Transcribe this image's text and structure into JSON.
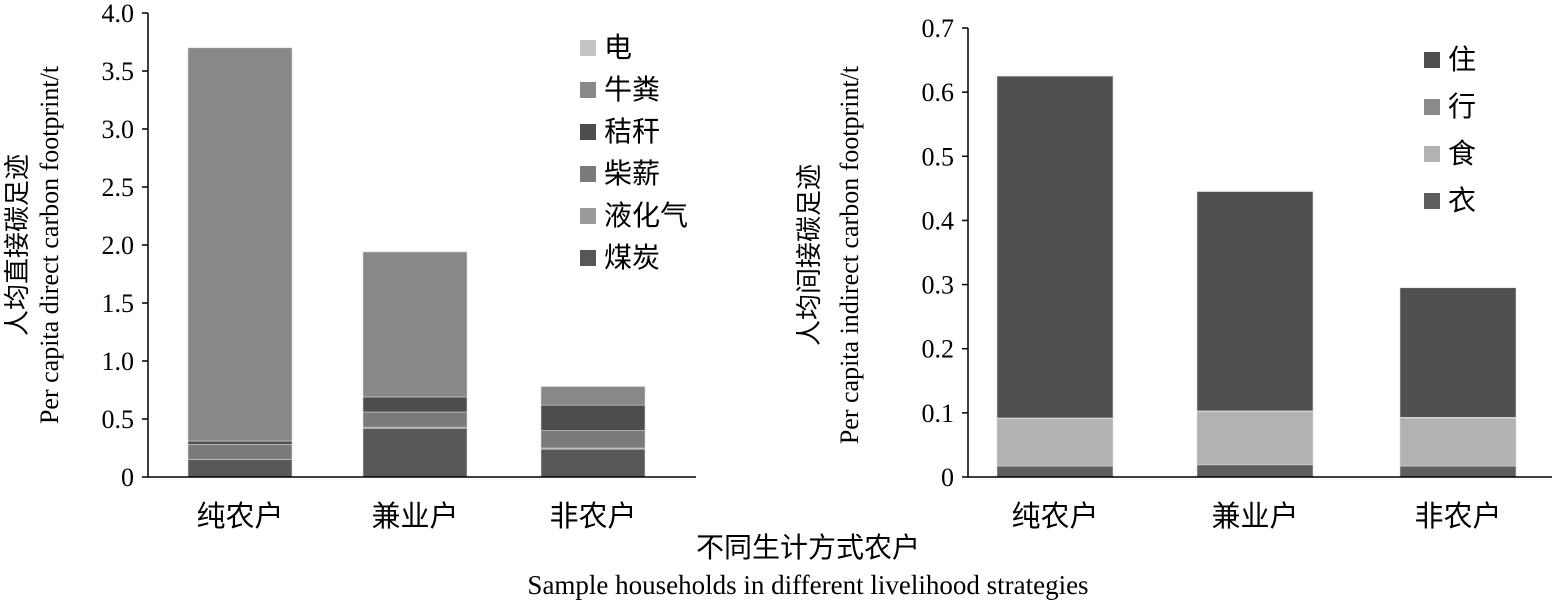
{
  "xlabel": {
    "cn": "不同生计方式农户",
    "en": "Sample households in different livelihood strategies"
  },
  "chart_data": [
    {
      "type": "bar",
      "stacked": true,
      "categories": [
        "纯农户",
        "兼业户",
        "非农户"
      ],
      "ylabel_cn": "人均直接碳足迹",
      "ylabel_en": "Per capita direct carbon footprint/t",
      "ylim": [
        0,
        4.0
      ],
      "yticks": [
        "0",
        "0.5",
        "1.0",
        "1.5",
        "2.0",
        "2.5",
        "3.0",
        "3.5",
        "4.0"
      ],
      "legend_position": "top-right",
      "series": [
        {
          "name": "煤炭",
          "color": "#575757",
          "values": [
            0.15,
            0.42,
            0.24
          ]
        },
        {
          "name": "液化气",
          "color": "#9a9a9a",
          "values": [
            0.0,
            0.01,
            0.01
          ]
        },
        {
          "name": "柴薪",
          "color": "#7a7a7a",
          "values": [
            0.13,
            0.13,
            0.15
          ]
        },
        {
          "name": "秸秆",
          "color": "#4d4d4d",
          "values": [
            0.03,
            0.13,
            0.22
          ]
        },
        {
          "name": "牛粪",
          "color": "#888888",
          "values": [
            3.39,
            1.25,
            0.16
          ]
        },
        {
          "name": "电",
          "color": "#c4c4c4",
          "values": [
            0.0,
            0.0,
            0.0
          ]
        }
      ]
    },
    {
      "type": "bar",
      "stacked": true,
      "categories": [
        "纯农户",
        "兼业户",
        "非农户"
      ],
      "ylabel_cn": "人均间接碳足迹",
      "ylabel_en": "Per capita indirect carbon footprint/t",
      "ylim": [
        0,
        0.7
      ],
      "yticks": [
        "0",
        "0.1",
        "0.2",
        "0.3",
        "0.4",
        "0.5",
        "0.6",
        "0.7"
      ],
      "legend_position": "top-right",
      "series": [
        {
          "name": "衣",
          "color": "#5e5e5e",
          "values": [
            0.017,
            0.019,
            0.017
          ]
        },
        {
          "name": "食",
          "color": "#b2b2b2",
          "values": [
            0.074,
            0.083,
            0.075
          ]
        },
        {
          "name": "行",
          "color": "#8a8a8a",
          "values": [
            0.001,
            0.001,
            0.001
          ]
        },
        {
          "name": "住",
          "color": "#505050",
          "values": [
            0.533,
            0.342,
            0.202
          ]
        }
      ]
    }
  ]
}
